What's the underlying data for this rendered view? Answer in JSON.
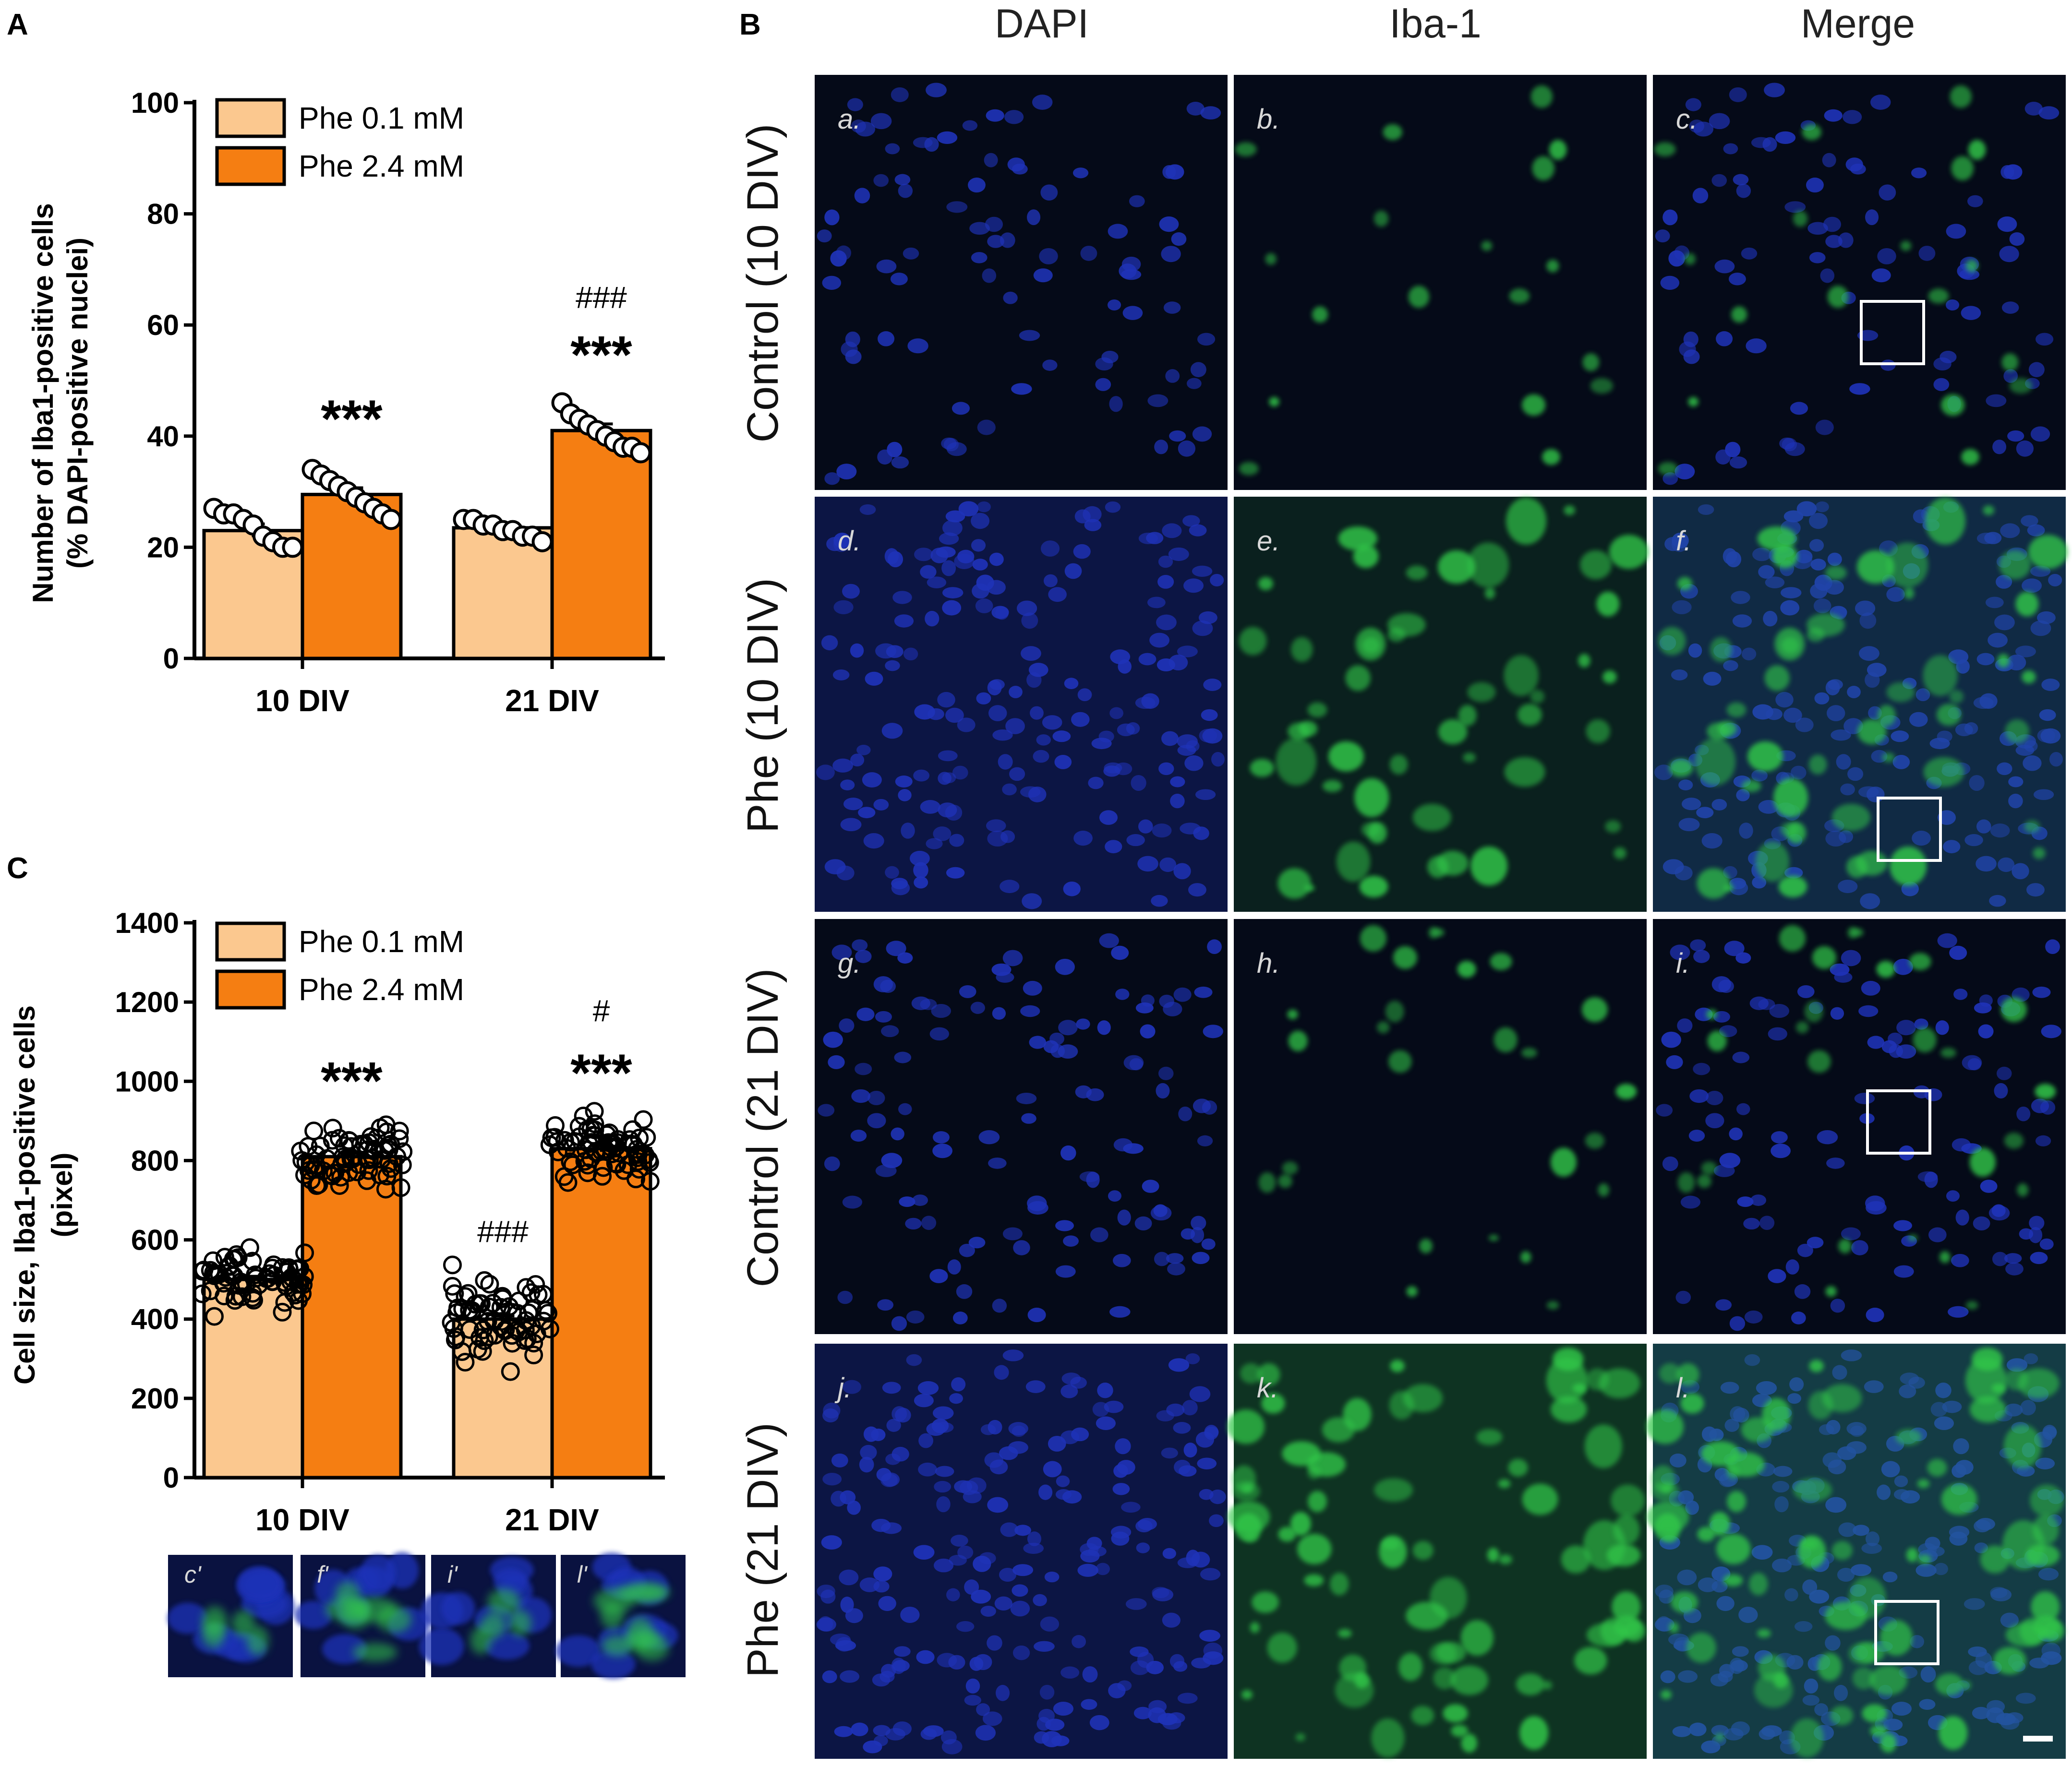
{
  "colors": {
    "low_phe": "#fbc88f",
    "high_phe": "#f57e12",
    "dapi": "#1f33b8",
    "iba1": "#33c84a",
    "panel_bg": "#050a18",
    "roi_box": "#ffffff"
  },
  "panel_letters": {
    "a": "A",
    "b": "B",
    "c": "C"
  },
  "chart_data": [
    {
      "type": "bar",
      "panel": "A",
      "title": "",
      "xlabel": "",
      "ylabel": "Number of Iba1-positive cells",
      "ylabel2": "(% DAPI-positive nuclei)",
      "categories": [
        "10 DIV",
        "21 DIV"
      ],
      "ylim": [
        0,
        100
      ],
      "yticks": [
        "0",
        "20",
        "40",
        "60",
        "80",
        "100"
      ],
      "legend_position": "top-left",
      "series": [
        {
          "name": "Phe 0.1 mM",
          "color": "#fbc88f",
          "values": [
            23,
            23.5
          ],
          "sem": [
            1.2,
            0.8
          ],
          "points": [
            [
              27,
              26,
              26,
              25,
              24,
              22,
              21,
              20,
              20
            ],
            [
              25,
              25,
              24,
              24,
              23,
              23,
              22,
              22,
              21
            ]
          ]
        },
        {
          "name": "Phe 2.4 mM",
          "color": "#f57e12",
          "values": [
            29.5,
            41
          ],
          "sem": [
            1.2,
            1.2
          ],
          "points": [
            [
              34,
              33,
              32,
              31,
              30,
              29,
              28,
              27,
              26,
              25
            ],
            [
              46,
              44,
              43,
              42,
              41,
              40,
              39,
              38,
              38,
              37
            ]
          ]
        }
      ],
      "annotations": [
        {
          "category": 0,
          "series": 1,
          "lines": [
            "***"
          ]
        },
        {
          "category": 1,
          "series": 1,
          "lines": [
            "###",
            "***"
          ]
        }
      ]
    },
    {
      "type": "bar",
      "panel": "C",
      "title": "",
      "xlabel": "",
      "ylabel": "Cell size, Iba1-positive cells",
      "ylabel2": "(pixel)",
      "categories": [
        "10 DIV",
        "21 DIV"
      ],
      "ylim": [
        0,
        1400
      ],
      "yticks": [
        "0",
        "200",
        "400",
        "600",
        "800",
        "1000",
        "1200",
        "1400"
      ],
      "legend_position": "top-left",
      "series": [
        {
          "name": "Phe 0.1 mM",
          "color": "#fbc88f",
          "values": [
            500,
            400
          ],
          "sem": [
            8,
            8
          ]
        },
        {
          "name": "Phe 2.4 mM",
          "color": "#f57e12",
          "values": [
            810,
            830
          ],
          "sem": [
            8,
            8
          ]
        }
      ],
      "point_clouds": [
        [
          {
            "center": 500,
            "spread": 90
          },
          {
            "center": 810,
            "spread": 90
          }
        ],
        [
          {
            "center": 400,
            "spread": 110
          },
          {
            "center": 830,
            "spread": 80
          }
        ]
      ],
      "annotations": [
        {
          "category": 0,
          "series": 1,
          "lines": [
            "***"
          ]
        },
        {
          "category": 1,
          "series": 0,
          "lines": [
            "###"
          ]
        },
        {
          "category": 1,
          "series": 1,
          "lines": [
            "#",
            "***"
          ]
        }
      ]
    }
  ],
  "micrographs": {
    "column_headers": [
      "DAPI",
      "Iba-1",
      "Merge"
    ],
    "row_labels": [
      "Control (10 DIV)",
      "Phe (10 DIV)",
      "Control (21 DIV)",
      "Phe (21 DIV)"
    ],
    "panel_letters": [
      [
        "a.",
        "b.",
        "c."
      ],
      [
        "d.",
        "e.",
        "f."
      ],
      [
        "g.",
        "h.",
        "i."
      ],
      [
        "j.",
        "k.",
        "l."
      ]
    ],
    "insets": [
      "c'",
      "f'",
      "i'",
      "l'"
    ]
  }
}
